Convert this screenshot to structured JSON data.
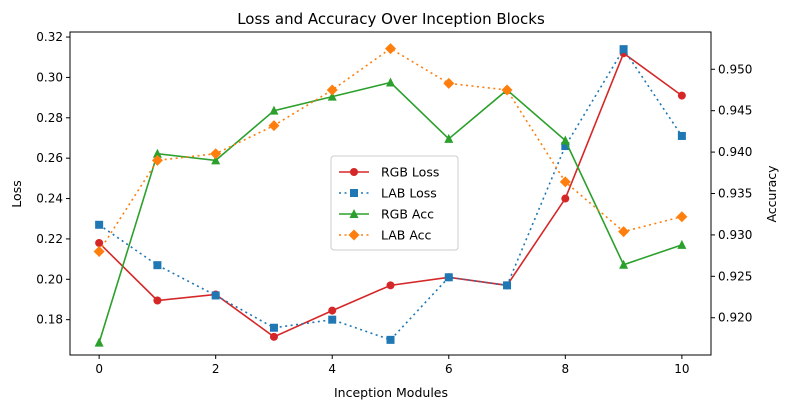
{
  "chart_data": {
    "type": "line",
    "title": "Loss and Accuracy Over Inception Blocks",
    "xlabel": "Inception Modules",
    "ylabel_left": "Loss",
    "ylabel_right": "Accuracy",
    "x": [
      0,
      1,
      2,
      3,
      4,
      5,
      6,
      7,
      8,
      9,
      10
    ],
    "xlim": [
      -0.5,
      10.5
    ],
    "ylim_left": [
      0.1625,
      0.3225
    ],
    "ylim_right": [
      0.9155,
      0.9545
    ],
    "xticks": [
      "0",
      "2",
      "4",
      "6",
      "8",
      "10"
    ],
    "yticks_left": [
      "0.18",
      "0.20",
      "0.22",
      "0.24",
      "0.26",
      "0.28",
      "0.30",
      "0.32"
    ],
    "yticks_right": [
      "0.920",
      "0.925",
      "0.930",
      "0.935",
      "0.940",
      "0.945",
      "0.950"
    ],
    "grid": false,
    "legend_position": "center",
    "series": [
      {
        "name": "RGB Loss",
        "axis": "left",
        "color": "#d62728",
        "linestyle": "solid",
        "marker": "circle",
        "values": [
          0.218,
          0.1895,
          0.1925,
          0.1715,
          0.1845,
          0.197,
          0.201,
          0.197,
          0.24,
          0.312,
          0.291
        ]
      },
      {
        "name": "LAB Loss",
        "axis": "left",
        "color": "#1f77b4",
        "linestyle": "dotted",
        "marker": "square",
        "values": [
          0.227,
          0.207,
          0.192,
          0.176,
          0.18,
          0.17,
          0.201,
          0.197,
          0.266,
          0.314,
          0.271
        ]
      },
      {
        "name": "RGB Acc",
        "axis": "right",
        "color": "#2ca02c",
        "linestyle": "solid",
        "marker": "triangle",
        "values": [
          0.917,
          0.9398,
          0.939,
          0.945,
          0.9467,
          0.9484,
          0.9416,
          0.9475,
          0.9414,
          0.9264,
          0.9288
        ]
      },
      {
        "name": "LAB Acc",
        "axis": "right",
        "color": "#ff7f0e",
        "linestyle": "dotted",
        "marker": "diamond",
        "values": [
          0.928,
          0.939,
          0.9398,
          0.9432,
          0.9475,
          0.9525,
          0.9483,
          0.9475,
          0.9364,
          0.9304,
          0.9322
        ]
      }
    ]
  }
}
